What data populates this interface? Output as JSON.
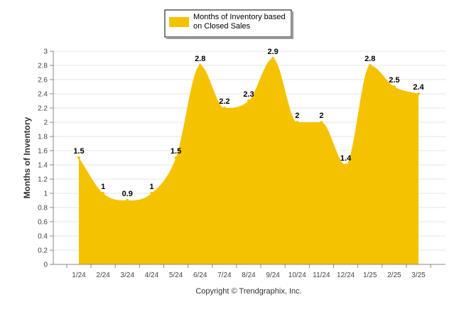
{
  "chart_data": {
    "type": "area",
    "categories": [
      "1/24",
      "2/24",
      "3/24",
      "4/24",
      "5/24",
      "6/24",
      "7/24",
      "8/24",
      "9/24",
      "10/24",
      "11/24",
      "12/24",
      "1/25",
      "2/25",
      "3/25"
    ],
    "series": [
      {
        "name": "Months of Inventory based on Closed Sales",
        "values": [
          1.5,
          1,
          0.9,
          1,
          1.5,
          2.8,
          2.2,
          2.3,
          2.9,
          2,
          2,
          1.4,
          2.8,
          2.5,
          2.4
        ]
      }
    ],
    "data_labels": [
      "1.5",
      "1",
      "0.9",
      "1",
      "1.5",
      "2.8",
      "2.2",
      "2.3",
      "2.9",
      "2",
      "2",
      "1.4",
      "2.8",
      "2.5",
      "2.4"
    ],
    "ylabel": "Months of Inventory",
    "ylim": [
      0,
      3
    ],
    "yticks": [
      0,
      0.2,
      0.4,
      0.6,
      0.8,
      1,
      1.2,
      1.4,
      1.6,
      1.8,
      2,
      2.2,
      2.4,
      2.6,
      2.8,
      3
    ],
    "ytick_labels": [
      "0",
      "0.2",
      "0.4",
      "0.6",
      "0.8",
      "1",
      "1.2",
      "1.4",
      "1.6",
      "1.8",
      "2",
      "2.2",
      "2.4",
      "2.6",
      "2.8",
      "3"
    ],
    "grid": true,
    "legend_position": "top-center",
    "legend_lines": [
      "Months of Inventory based",
      "on Closed Sales"
    ],
    "color": "#f5c200"
  },
  "footer": {
    "copyright": "Copyright © Trendgraphix, Inc."
  }
}
